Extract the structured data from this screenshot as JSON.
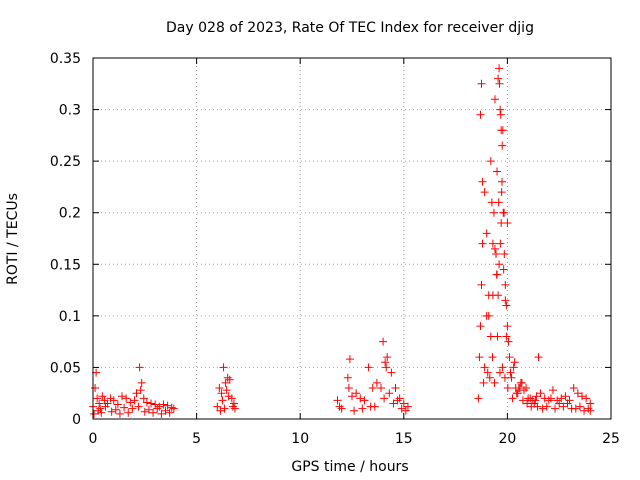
{
  "chart_data": {
    "type": "scatter",
    "title": "Day 028 of 2023, Rate Of TEC Index for receiver djig",
    "xlabel": "GPS time / hours",
    "ylabel": "ROTI / TECUs",
    "xlim": [
      0,
      25
    ],
    "ylim": [
      0,
      0.35
    ],
    "grid": true,
    "marker": "+",
    "color": "#ff0000",
    "xticks": [
      {
        "value": 0,
        "label": "0"
      },
      {
        "value": 5,
        "label": "5"
      },
      {
        "value": 10,
        "label": "10"
      },
      {
        "value": 15,
        "label": "15"
      },
      {
        "value": 20,
        "label": "20"
      },
      {
        "value": 25,
        "label": "25"
      }
    ],
    "yticks": [
      {
        "value": 0,
        "label": "0"
      },
      {
        "value": 0.05,
        "label": "0.05"
      },
      {
        "value": 0.1,
        "label": "0.1"
      },
      {
        "value": 0.15,
        "label": "0.15"
      },
      {
        "value": 0.2,
        "label": "0.2"
      },
      {
        "value": 0.25,
        "label": "0.25"
      },
      {
        "value": 0.3,
        "label": "0.3"
      },
      {
        "value": 0.35,
        "label": "0.35"
      }
    ],
    "series": [
      {
        "name": "ROTI",
        "x": [
          0.0,
          0.1,
          0.15,
          0.2,
          0.3,
          0.35,
          0.45,
          0.55,
          0.7,
          0.85,
          1.0,
          1.2,
          1.4,
          1.6,
          1.8,
          2.0,
          2.1,
          2.25,
          2.3,
          2.35,
          2.45,
          2.6,
          2.8,
          3.0,
          3.2,
          3.4,
          3.6,
          3.8,
          3.9,
          0.25,
          0.6,
          1.1,
          1.5,
          1.9,
          2.2,
          2.7,
          3.1,
          3.5,
          0.05,
          0.4,
          0.9,
          1.3,
          1.7,
          2.5,
          2.9,
          3.3,
          3.7,
          6.0,
          6.1,
          6.2,
          6.3,
          6.4,
          6.5,
          6.6,
          6.7,
          6.8,
          6.85,
          6.45,
          6.25,
          6.55,
          6.15,
          6.35,
          6.75,
          11.8,
          11.9,
          12.0,
          12.3,
          12.4,
          12.5,
          12.7,
          12.9,
          13.1,
          13.3,
          13.5,
          13.7,
          13.9,
          14.0,
          14.1,
          14.2,
          14.3,
          14.4,
          14.6,
          14.8,
          15.0,
          15.2,
          12.35,
          13.0,
          13.6,
          14.05,
          14.15,
          14.5,
          14.9,
          12.6,
          13.4,
          14.7,
          15.1,
          18.6,
          18.65,
          18.7,
          18.75,
          18.8,
          18.9,
          19.0,
          19.1,
          19.2,
          19.25,
          19.3,
          19.35,
          19.4,
          19.45,
          19.5,
          19.5,
          19.55,
          19.6,
          19.6,
          19.65,
          19.7,
          19.7,
          19.75,
          19.8,
          19.85,
          19.9,
          19.95,
          20.0,
          20.1,
          20.2,
          20.3,
          20.4,
          20.5,
          20.6,
          20.8,
          21.0,
          21.2,
          21.4,
          21.5,
          21.6,
          21.8,
          22.0,
          22.2,
          22.4,
          22.6,
          22.8,
          23.0,
          23.2,
          23.4,
          23.6,
          23.8,
          24.0,
          18.7,
          18.75,
          18.8,
          19.0,
          19.2,
          19.4,
          19.55,
          19.62,
          19.68,
          19.72,
          19.78,
          19.82,
          19.9,
          20.0,
          20.05,
          18.85,
          19.1,
          19.3,
          19.48,
          19.58,
          19.66,
          19.74,
          19.84,
          19.95,
          20.15,
          20.35,
          20.7,
          20.9,
          21.1,
          21.3,
          21.45,
          22.5,
          23.1,
          23.5,
          24.0,
          18.9,
          19.05,
          19.15,
          19.28,
          19.38,
          19.52,
          19.64,
          19.76,
          19.88,
          20.02,
          20.25,
          20.45,
          20.55,
          20.65,
          20.75,
          20.95,
          21.15,
          21.35,
          21.7,
          21.9,
          22.1,
          22.3,
          22.7,
          22.9,
          23.3,
          23.7,
          23.9
        ],
        "y": [
          0.012,
          0.03,
          0.045,
          0.02,
          0.015,
          0.01,
          0.022,
          0.018,
          0.015,
          0.02,
          0.018,
          0.014,
          0.022,
          0.02,
          0.016,
          0.018,
          0.025,
          0.05,
          0.028,
          0.035,
          0.02,
          0.016,
          0.015,
          0.014,
          0.012,
          0.014,
          0.013,
          0.011,
          0.01,
          0.008,
          0.012,
          0.009,
          0.011,
          0.01,
          0.012,
          0.009,
          0.01,
          0.008,
          0.005,
          0.006,
          0.007,
          0.005,
          0.006,
          0.007,
          0.006,
          0.005,
          0.006,
          0.012,
          0.03,
          0.025,
          0.05,
          0.035,
          0.04,
          0.038,
          0.02,
          0.015,
          0.01,
          0.028,
          0.018,
          0.022,
          0.008,
          0.01,
          0.012,
          0.018,
          0.012,
          0.01,
          0.04,
          0.058,
          0.022,
          0.025,
          0.02,
          0.018,
          0.05,
          0.03,
          0.035,
          0.03,
          0.075,
          0.055,
          0.06,
          0.025,
          0.045,
          0.03,
          0.02,
          0.015,
          0.012,
          0.03,
          0.01,
          0.012,
          0.02,
          0.05,
          0.015,
          0.01,
          0.008,
          0.012,
          0.018,
          0.008,
          0.02,
          0.06,
          0.09,
          0.13,
          0.17,
          0.22,
          0.18,
          0.12,
          0.25,
          0.21,
          0.17,
          0.2,
          0.31,
          0.16,
          0.24,
          0.14,
          0.12,
          0.34,
          0.15,
          0.3,
          0.19,
          0.28,
          0.265,
          0.2,
          0.16,
          0.13,
          0.11,
          0.09,
          0.06,
          0.04,
          0.05,
          0.03,
          0.025,
          0.03,
          0.028,
          0.02,
          0.018,
          0.022,
          0.06,
          0.025,
          0.02,
          0.018,
          0.028,
          0.018,
          0.02,
          0.022,
          0.018,
          0.03,
          0.025,
          0.022,
          0.02,
          0.015,
          0.295,
          0.325,
          0.23,
          0.1,
          0.08,
          0.165,
          0.33,
          0.325,
          0.295,
          0.22,
          0.28,
          0.145,
          0.115,
          0.19,
          0.075,
          0.035,
          0.1,
          0.12,
          0.14,
          0.21,
          0.17,
          0.23,
          0.2,
          0.08,
          0.045,
          0.055,
          0.035,
          0.03,
          0.02,
          0.015,
          0.012,
          0.015,
          0.01,
          0.012,
          0.008,
          0.05,
          0.045,
          0.04,
          0.06,
          0.035,
          0.08,
          0.045,
          0.05,
          0.04,
          0.03,
          0.02,
          0.025,
          0.03,
          0.035,
          0.018,
          0.015,
          0.012,
          0.018,
          0.01,
          0.012,
          0.02,
          0.01,
          0.012,
          0.015,
          0.01,
          0.008,
          0.01
        ]
      }
    ]
  }
}
